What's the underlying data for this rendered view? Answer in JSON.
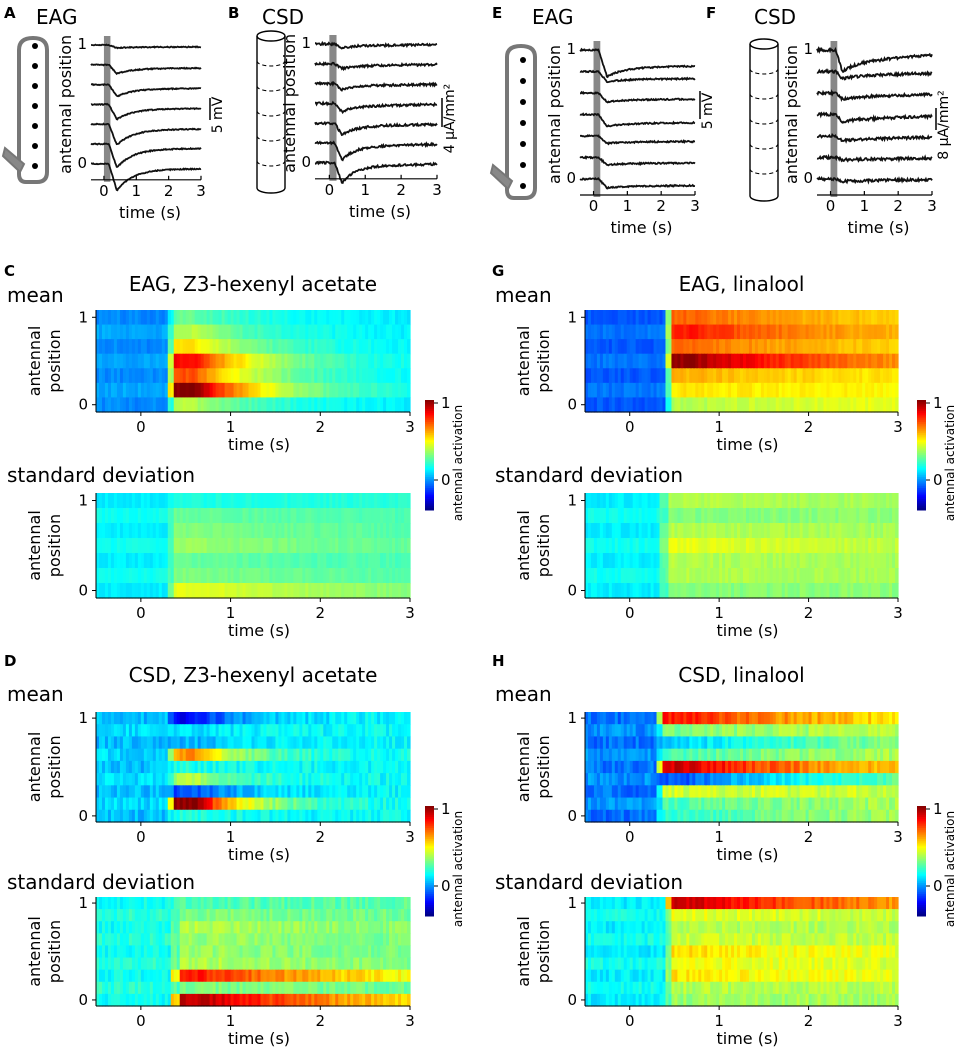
{
  "figure": {
    "panel_letters": {
      "A": "A",
      "B": "B",
      "C": "C",
      "D": "D",
      "E": "E",
      "F": "F",
      "G": "G",
      "H": "H"
    },
    "colorbar_label": "antennal activation",
    "colorbar_ticks": [
      "1",
      "0"
    ],
    "colors": {
      "trace": "#111111",
      "stimulus_bar": "#888888",
      "antenna_outline": "#777777",
      "electrode": "#000000"
    }
  },
  "chart_data": [
    {
      "id": "A",
      "type": "line",
      "title": "EAG",
      "xlabel": "time (s)",
      "ylabel": "antennal position",
      "xlim": [
        -0.4,
        3
      ],
      "xticks": [
        "0",
        "1",
        "2",
        "3"
      ],
      "ytick_top": "1",
      "ytick_bottom": "0",
      "scalebar": "5 mV",
      "stimulus_window_s": [
        0,
        0.2
      ],
      "series": [
        {
          "name": "position 1",
          "dip": 0.1,
          "rec": 0.3
        },
        {
          "name": "position 2",
          "dip": 0.3,
          "rec": 0.6
        },
        {
          "name": "position 3",
          "dip": 0.4,
          "rec": 0.65
        },
        {
          "name": "position 4",
          "dip": 0.5,
          "rec": 0.7
        },
        {
          "name": "position 5",
          "dip": 0.7,
          "rec": 0.75
        },
        {
          "name": "position 6",
          "dip": 0.8,
          "rec": 0.8
        },
        {
          "name": "position 7",
          "dip": 0.9,
          "rec": 0.8
        }
      ]
    },
    {
      "id": "B",
      "type": "line",
      "title": "CSD",
      "xlabel": "time (s)",
      "ylabel": "antennal position",
      "xlim": [
        -0.4,
        3
      ],
      "xticks": [
        "0",
        "1",
        "2",
        "3"
      ],
      "ytick_top": "1",
      "ytick_bottom": "0",
      "scalebar": "4 µA/mm²",
      "stimulus_window_s": [
        0,
        0.2
      ],
      "series": [
        {
          "name": "position 1",
          "dip": 0.15,
          "rec": 0.4
        },
        {
          "name": "position 2",
          "dip": 0.2,
          "rec": 0.5
        },
        {
          "name": "position 3",
          "dip": 0.25,
          "rec": 0.6
        },
        {
          "name": "position 4",
          "dip": 0.35,
          "rec": 0.6
        },
        {
          "name": "position 5",
          "dip": 0.5,
          "rec": 0.7
        },
        {
          "name": "position 6",
          "dip": 0.7,
          "rec": 0.75
        },
        {
          "name": "position 7",
          "dip": 0.85,
          "rec": 0.8
        }
      ]
    },
    {
      "id": "E",
      "type": "line",
      "title": "EAG",
      "xlabel": "time (s)",
      "ylabel": "antennal position",
      "xlim": [
        -0.4,
        3
      ],
      "xticks": [
        "0",
        "1",
        "2",
        "3"
      ],
      "ytick_top": "1",
      "ytick_bottom": "0",
      "scalebar": "5 mV",
      "stimulus_window_s": [
        0,
        0.2
      ],
      "series": [
        {
          "name": "position 1",
          "dip": 0.9,
          "rec": 0.35
        },
        {
          "name": "position 2",
          "dip": 0.35,
          "rec": 0.25
        },
        {
          "name": "position 3",
          "dip": 0.3,
          "rec": 0.25
        },
        {
          "name": "position 4",
          "dip": 0.4,
          "rec": 0.25
        },
        {
          "name": "position 5",
          "dip": 0.25,
          "rec": 0.2
        },
        {
          "name": "position 6",
          "dip": 0.25,
          "rec": 0.2
        },
        {
          "name": "position 7",
          "dip": 0.3,
          "rec": 0.2
        }
      ]
    },
    {
      "id": "F",
      "type": "line",
      "title": "CSD",
      "xlabel": "time (s)",
      "ylabel": "antennal position",
      "xlim": [
        -0.4,
        3
      ],
      "xticks": [
        "0",
        "1",
        "2",
        "3"
      ],
      "ytick_top": "1",
      "ytick_bottom": "0",
      "scalebar": "8 µA/mm²",
      "stimulus_window_s": [
        0,
        0.2
      ],
      "series": [
        {
          "name": "position 1",
          "dip": 0.9,
          "rec": 0.3
        },
        {
          "name": "position 2",
          "dip": 0.3,
          "rec": 0.25
        },
        {
          "name": "position 3",
          "dip": 0.25,
          "rec": 0.2
        },
        {
          "name": "position 4",
          "dip": 0.3,
          "rec": 0.2
        },
        {
          "name": "position 5",
          "dip": 0.2,
          "rec": 0.15
        },
        {
          "name": "position 6",
          "dip": 0.1,
          "rec": 0.1
        },
        {
          "name": "position 7",
          "dip": 0.1,
          "rec": 0.1
        }
      ]
    },
    {
      "id": "C",
      "type": "heatmap",
      "title": "EAG, Z3-hexenyl acetate",
      "xlabel": "time (s)",
      "ylabel_line1": "antennal",
      "ylabel_line2": "position",
      "xlim": [
        -0.5,
        3
      ],
      "xticks": [
        "0",
        "1",
        "2",
        "3"
      ],
      "ytick_top": "1",
      "ytick_bottom": "0",
      "clim": [
        -1,
        1
      ],
      "mean": {
        "label": "mean",
        "onset_s": 0.3,
        "base": -0.45,
        "late": -0.3,
        "decay_s": 0.9,
        "noise": 0.04,
        "rows_top_to_bottom": [
          -0.05,
          0.1,
          0.3,
          0.75,
          0.6,
          1.0,
          0.1
        ]
      },
      "std": {
        "label": "standard deviation",
        "onset_s": 0.3,
        "base": -0.25,
        "late": -0.15,
        "decay_s": 3.0,
        "noise": 0.03,
        "rows_top_to_bottom": [
          -0.2,
          -0.05,
          0.0,
          0.05,
          -0.05,
          0.0,
          0.2
        ]
      }
    },
    {
      "id": "D",
      "type": "heatmap",
      "title": "CSD, Z3-hexenyl acetate",
      "xlabel": "time (s)",
      "ylabel_line1": "antennal",
      "ylabel_line2": "position",
      "xlim": [
        -0.5,
        3
      ],
      "xticks": [
        "0",
        "1",
        "2",
        "3"
      ],
      "ytick_top": "1",
      "ytick_bottom": "0",
      "clim": [
        -1,
        1
      ],
      "mean": {
        "label": "mean",
        "onset_s": 0.3,
        "base": -0.35,
        "late": -0.25,
        "decay_s": 0.6,
        "noise": 0.08,
        "rows_top_to_bottom": [
          -0.75,
          -0.3,
          -0.4,
          0.45,
          -0.2,
          0.1,
          -0.6,
          1.0,
          -0.2
        ]
      },
      "std": {
        "label": "standard deviation",
        "onset_s": 0.35,
        "base": -0.2,
        "late": -0.05,
        "decay_s": 2.5,
        "noise": 0.07,
        "rows_top_to_bottom": [
          -0.1,
          0.0,
          0.1,
          0.05,
          0.05,
          0.1,
          0.7,
          0.0,
          0.9
        ]
      }
    },
    {
      "id": "G",
      "type": "heatmap",
      "title": "EAG, linalool",
      "xlabel": "time (s)",
      "ylabel_line1": "antennal",
      "ylabel_line2": "position",
      "xlim": [
        -0.5,
        3
      ],
      "xticks": [
        "0",
        "1",
        "2",
        "3"
      ],
      "ytick_top": "1",
      "ytick_bottom": "0",
      "clim": [
        -1,
        1
      ],
      "mean": {
        "label": "mean",
        "onset_s": 0.4,
        "base": -0.55,
        "late": 0.25,
        "decay_s": 2.0,
        "noise": 0.04,
        "rows_top_to_bottom": [
          0.55,
          0.7,
          0.55,
          0.95,
          0.4,
          0.3,
          0.1
        ]
      },
      "std": {
        "label": "standard deviation",
        "onset_s": 0.35,
        "base": -0.25,
        "late": 0.05,
        "decay_s": 3.0,
        "noise": 0.04,
        "rows_top_to_bottom": [
          0.1,
          0.0,
          0.1,
          0.2,
          0.1,
          0.1,
          0.0
        ]
      }
    },
    {
      "id": "H",
      "type": "heatmap",
      "title": "CSD, linalool",
      "xlabel": "time (s)",
      "ylabel_line1": "antennal",
      "ylabel_line2": "position",
      "xlim": [
        -0.5,
        3
      ],
      "xticks": [
        "0",
        "1",
        "2",
        "3"
      ],
      "ytick_top": "1",
      "ytick_bottom": "0",
      "clim": [
        -1,
        1
      ],
      "mean": {
        "label": "mean",
        "onset_s": 0.3,
        "base": -0.5,
        "late": 0.15,
        "decay_s": 2.0,
        "noise": 0.08,
        "rows_top_to_bottom": [
          0.7,
          0.0,
          -0.35,
          -0.1,
          0.85,
          -0.6,
          0.15,
          -0.1,
          -0.15
        ]
      },
      "std": {
        "label": "standard deviation",
        "onset_s": 0.4,
        "base": -0.25,
        "late": 0.1,
        "decay_s": 3.0,
        "noise": 0.07,
        "rows_top_to_bottom": [
          0.85,
          0.2,
          0.1,
          0.15,
          0.3,
          0.25,
          0.3,
          0.1,
          0.05
        ]
      }
    }
  ]
}
